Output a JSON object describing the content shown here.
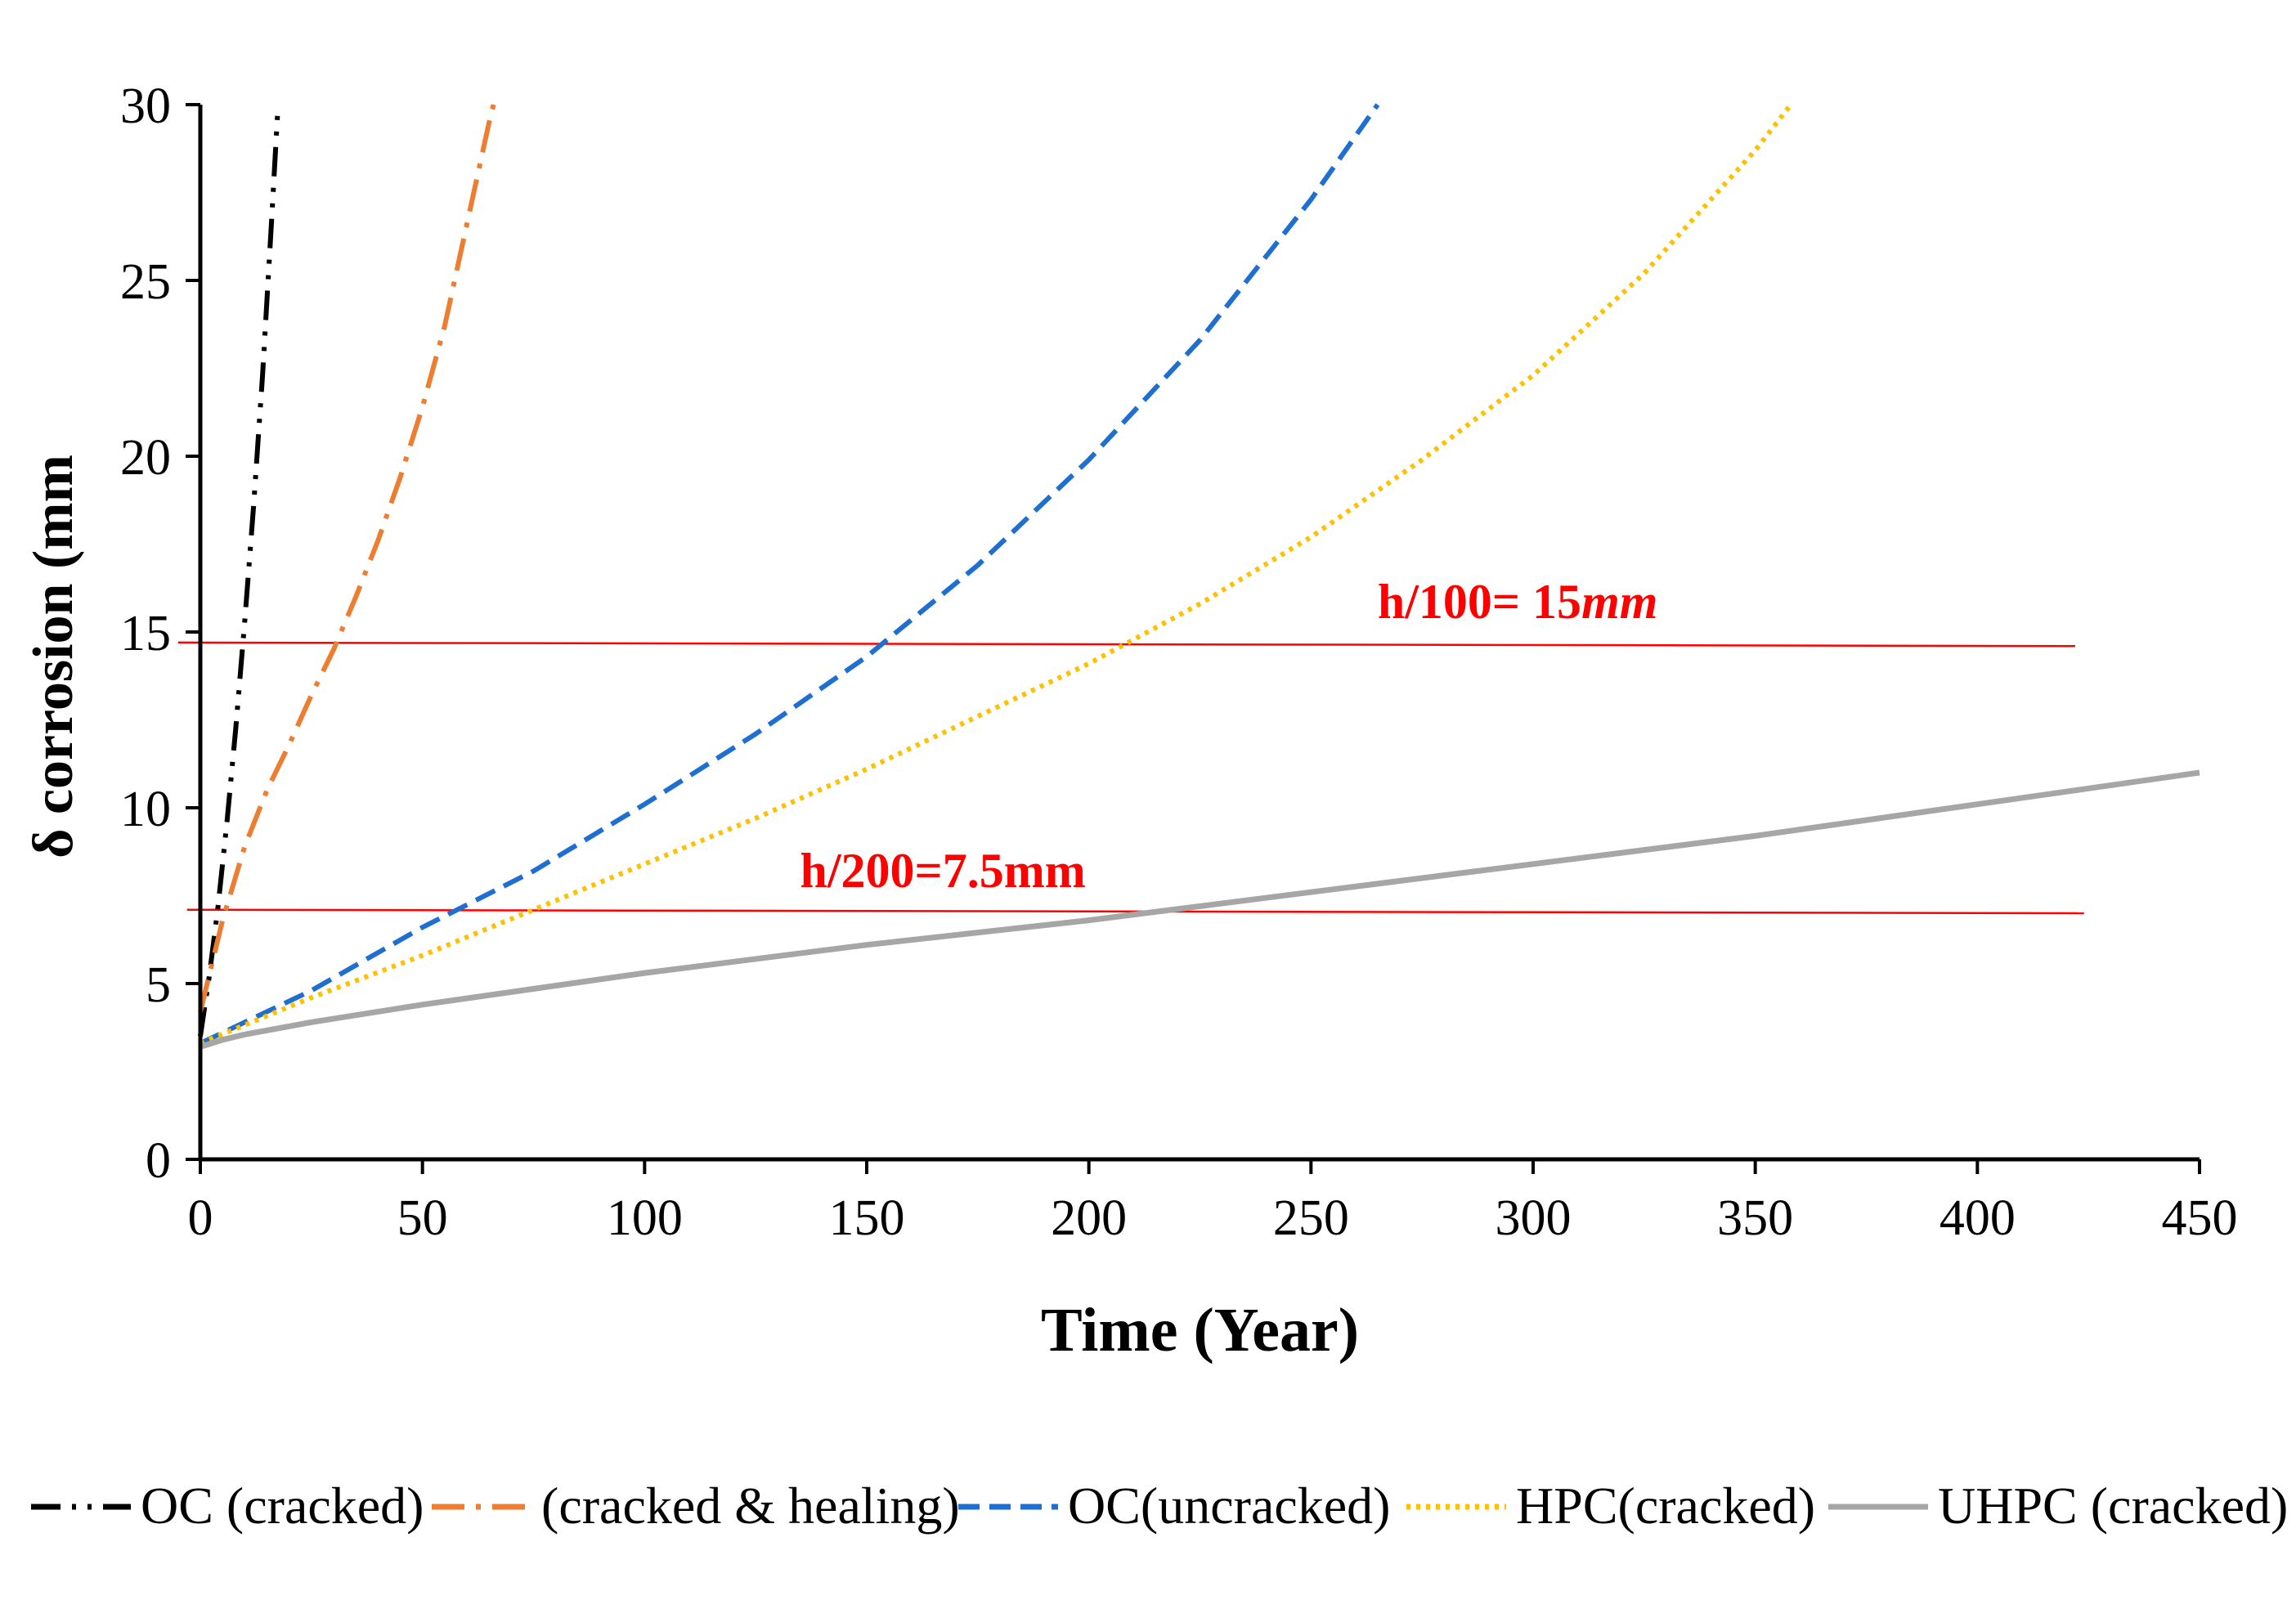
{
  "chart_data": {
    "type": "line",
    "title": "",
    "xlabel": "Time (Year)",
    "ylabel": "δ corrosion (mm",
    "xlim": [
      0,
      450
    ],
    "ylim": [
      0,
      30
    ],
    "xticks": [
      0,
      50,
      100,
      150,
      200,
      250,
      300,
      350,
      400,
      450
    ],
    "yticks": [
      0,
      5,
      10,
      15,
      20,
      25,
      30
    ],
    "grid": false,
    "legend_position": "bottom",
    "series": [
      {
        "name": "OC (cracked)",
        "color": "#000000",
        "dash": "dash-dot-dot",
        "x": [
          0,
          2,
          4,
          6,
          8,
          10,
          12,
          14,
          16,
          17.5
        ],
        "y": [
          3.5,
          5.2,
          7.2,
          9.6,
          12.3,
          15.3,
          18.6,
          22.3,
          26.6,
          30
        ]
      },
      {
        "name": "(cracked & healing)",
        "color": "#ED7D31",
        "dash": "dash-dot",
        "x": [
          0,
          5,
          10,
          15,
          20,
          25,
          30,
          35,
          40,
          45,
          50,
          55,
          60,
          65,
          66
        ],
        "y": [
          4.2,
          6.8,
          8.9,
          10.5,
          11.8,
          13.2,
          14.5,
          16,
          17.6,
          19.4,
          21.4,
          23.7,
          26.6,
          29.5,
          30
        ]
      },
      {
        "name": "OC(uncracked)",
        "color": "#1F6FD1",
        "dash": "dash",
        "x": [
          0,
          10,
          25,
          50,
          75,
          100,
          125,
          150,
          175,
          200,
          225,
          250,
          265
        ],
        "y": [
          3.3,
          3.9,
          4.8,
          6.6,
          8.2,
          10.1,
          12.1,
          14.3,
          16.9,
          19.9,
          23.3,
          27.3,
          30
        ]
      },
      {
        "name": "HPC(cracked)",
        "color": "#FFC000",
        "dash": "dot",
        "x": [
          0,
          25,
          50,
          75,
          100,
          125,
          150,
          175,
          200,
          225,
          250,
          275,
          300,
          325,
          350,
          358
        ],
        "y": [
          3.3,
          4.6,
          5.8,
          7.1,
          8.4,
          9.7,
          11.1,
          12.6,
          14.1,
          15.8,
          17.7,
          19.9,
          22.3,
          25.2,
          28.7,
          30
        ]
      },
      {
        "name": "UHPC (cracked)",
        "color": "#A6A6A6",
        "dash": "solid",
        "x": [
          0,
          5,
          10,
          25,
          50,
          100,
          150,
          200,
          250,
          300,
          350,
          400,
          450
        ],
        "y": [
          3.2,
          3.4,
          3.55,
          3.9,
          4.4,
          5.3,
          6.1,
          6.8,
          7.6,
          8.4,
          9.2,
          10.1,
          11.0
        ]
      }
    ],
    "reference_lines": [
      {
        "label": "h/100= 15",
        "unit": "mm",
        "y_start": 14.7,
        "y_end": 14.6,
        "x_start": -5,
        "x_end": 422,
        "label_x": 265,
        "label_y": 15.4,
        "color": "#FF0000"
      },
      {
        "label": "h/200=7.5mm",
        "unit": "",
        "y_start": 7.1,
        "y_end": 7.0,
        "x_start": -3,
        "x_end": 424,
        "label_x": 135,
        "label_y": 7.75,
        "color": "#FF0000"
      }
    ]
  }
}
